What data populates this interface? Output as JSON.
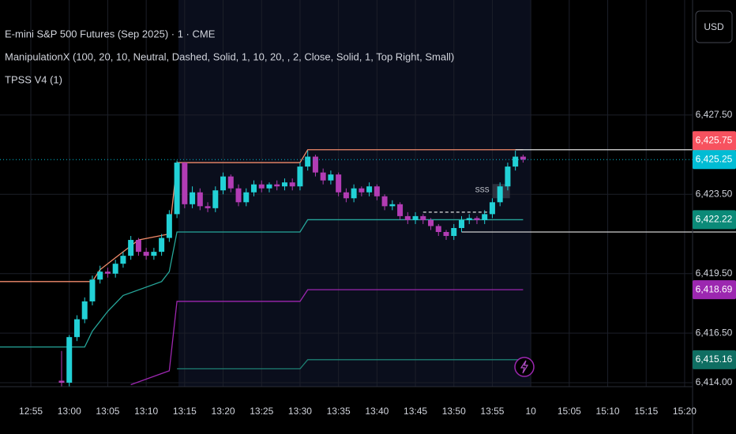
{
  "header": {
    "title": "E-mini S&P 500 Futures (Sep 2025) · 1 · CME",
    "indicators": [
      "ManipulationX (100, 20, 10, Neutral, Dashed, Solid, 1, 10, 20, , 2, Close, Solid, 1, Top Right, Small)",
      "TPSS V4 (1)"
    ],
    "currency": "USD"
  },
  "chart_data": {
    "type": "candlestick",
    "categories": [
      "12:59",
      "13:00",
      "13:01",
      "13:02",
      "13:03",
      "13:04",
      "13:05",
      "13:06",
      "13:07",
      "13:08",
      "13:09",
      "13:10",
      "13:11",
      "13:12",
      "13:13",
      "13:14",
      "13:15",
      "13:16",
      "13:17",
      "13:18",
      "13:19",
      "13:20",
      "13:21",
      "13:22",
      "13:23",
      "13:24",
      "13:25",
      "13:26",
      "13:27",
      "13:28",
      "13:29",
      "13:30",
      "13:31",
      "13:32",
      "13:33",
      "13:34",
      "13:35",
      "13:36",
      "13:37",
      "13:38",
      "13:39",
      "13:40",
      "13:41",
      "13:42",
      "13:43",
      "13:44",
      "13:45",
      "13:46",
      "13:47",
      "13:48",
      "13:49",
      "13:50",
      "13:51",
      "13:52",
      "13:53",
      "13:54",
      "13:55",
      "13:56",
      "13:57",
      "13:58",
      "13:59"
    ],
    "open": [
      6414.1,
      6414.0,
      6416.3,
      6417.2,
      6418.1,
      6419.2,
      6419.6,
      6419.5,
      6420.0,
      6420.4,
      6421.2,
      6420.6,
      6420.4,
      6420.6,
      6421.3,
      6422.5,
      6425.1,
      6423.0,
      6423.6,
      6422.9,
      6422.8,
      6423.7,
      6424.4,
      6423.8,
      6423.1,
      6423.6,
      6424.0,
      6423.8,
      6424.0,
      6423.9,
      6424.1,
      6423.9,
      6424.9,
      6425.4,
      6424.6,
      6424.2,
      6424.5,
      6423.6,
      6423.3,
      6423.8,
      6423.6,
      6423.9,
      6423.4,
      6422.9,
      6423.0,
      6422.4,
      6422.2,
      6422.4,
      6422.2,
      6421.9,
      6421.6,
      6421.4,
      6421.8,
      6422.2,
      6422.3,
      6422.2,
      6422.5,
      6423.1,
      6423.9,
      6424.9,
      6425.4
    ],
    "high": [
      6415.6,
      6416.4,
      6417.4,
      6418.3,
      6419.4,
      6419.9,
      6419.8,
      6420.2,
      6420.6,
      6421.4,
      6421.3,
      6420.8,
      6420.8,
      6421.5,
      6422.7,
      6425.2,
      6425.1,
      6423.9,
      6423.8,
      6423.1,
      6423.9,
      6424.6,
      6424.5,
      6424.0,
      6423.8,
      6424.2,
      6424.2,
      6424.1,
      6424.2,
      6424.3,
      6424.3,
      6425.1,
      6425.7,
      6425.5,
      6424.8,
      6424.7,
      6424.6,
      6423.8,
      6424.0,
      6423.9,
      6424.1,
      6424.0,
      6423.5,
      6423.2,
      6423.1,
      6422.6,
      6422.6,
      6422.5,
      6422.3,
      6422.0,
      6421.7,
      6422.0,
      6422.4,
      6422.5,
      6422.4,
      6422.7,
      6423.3,
      6424.1,
      6425.1,
      6425.7,
      6425.5
    ],
    "low": [
      6413.8,
      6413.8,
      6416.1,
      6417.0,
      6417.9,
      6419.0,
      6419.3,
      6419.3,
      6419.8,
      6420.2,
      6420.4,
      6420.2,
      6420.2,
      6420.4,
      6421.1,
      6422.3,
      6422.8,
      6422.8,
      6422.7,
      6422.6,
      6422.6,
      6423.5,
      6423.6,
      6422.9,
      6422.9,
      6423.4,
      6423.6,
      6423.6,
      6423.7,
      6423.7,
      6423.7,
      6423.7,
      6424.7,
      6424.4,
      6424.0,
      6424.0,
      6423.4,
      6423.1,
      6423.1,
      6423.4,
      6423.4,
      6423.2,
      6422.7,
      6422.7,
      6422.2,
      6422.0,
      6422.0,
      6422.0,
      6421.7,
      6421.4,
      6421.2,
      6421.2,
      6421.6,
      6422.0,
      6422.0,
      6422.0,
      6422.3,
      6422.9,
      6423.7,
      6424.7,
      6425.1
    ],
    "close": [
      6414.0,
      6416.3,
      6417.2,
      6418.1,
      6419.2,
      6419.6,
      6419.5,
      6420.0,
      6420.4,
      6421.2,
      6420.6,
      6420.4,
      6420.6,
      6421.3,
      6422.5,
      6425.1,
      6423.0,
      6423.6,
      6422.9,
      6422.8,
      6423.7,
      6424.4,
      6423.8,
      6423.1,
      6423.6,
      6424.0,
      6423.8,
      6424.0,
      6423.9,
      6424.1,
      6423.9,
      6424.9,
      6425.4,
      6424.6,
      6424.2,
      6424.5,
      6423.6,
      6423.3,
      6423.8,
      6423.6,
      6423.9,
      6423.4,
      6422.9,
      6423.0,
      6422.4,
      6422.2,
      6422.4,
      6422.2,
      6421.9,
      6421.6,
      6421.4,
      6421.8,
      6422.2,
      6422.3,
      6422.2,
      6422.5,
      6423.1,
      6423.9,
      6424.9,
      6425.4,
      6425.25
    ],
    "up_color": "#22d1d6",
    "down_color": "#b23cb4",
    "lines": [
      {
        "color": "#f28b6b",
        "extend": "left",
        "x": [
          "12:59",
          "13:03",
          "13:04",
          "13:06",
          "13:09",
          "13:13",
          "13:14",
          "13:30",
          "13:31",
          "13:59"
        ],
        "values": [
          6419.1,
          6419.1,
          6419.7,
          6420.3,
          6421.2,
          6421.5,
          6425.1,
          6425.1,
          6425.75,
          6425.75
        ]
      },
      {
        "color": "#26a69a",
        "extend": "left",
        "x": [
          "12:59",
          "13:02",
          "13:03",
          "13:05",
          "13:07",
          "13:12",
          "13:13",
          "13:14",
          "13:30",
          "13:31",
          "13:59"
        ],
        "values": [
          6415.8,
          6415.8,
          6416.6,
          6417.6,
          6418.4,
          6419.1,
          6419.6,
          6421.6,
          6421.6,
          6422.22,
          6422.22
        ]
      },
      {
        "color": "#9c27b0",
        "x": [
          "13:08",
          "13:13",
          "13:14",
          "13:30",
          "13:31",
          "13:59"
        ],
        "values": [
          6413.9,
          6414.6,
          6418.1,
          6418.1,
          6418.69,
          6418.69
        ]
      },
      {
        "color": "#1d7f72",
        "x": [
          "13:14",
          "13:30",
          "13:31",
          "13:59"
        ],
        "values": [
          6414.7,
          6414.7,
          6415.16,
          6415.16
        ]
      },
      {
        "color": "#e0e0e0",
        "extend": "right",
        "x": [
          "13:58",
          "13:59"
        ],
        "values": [
          6425.75,
          6425.75
        ]
      },
      {
        "color": "#cfcfcf",
        "extend": "right",
        "x": [
          "13:51",
          "13:59"
        ],
        "values": [
          6421.6,
          6421.6
        ]
      },
      {
        "color": "#e0e0e0",
        "dash": true,
        "x": [
          "13:46",
          "13:55"
        ],
        "values": [
          6422.6,
          6422.6
        ]
      }
    ],
    "annotation": {
      "text": "SSS",
      "x": "13:54",
      "y": 6423.7
    },
    "ylim": [
      6413.8,
      6433.3
    ],
    "yticks": [
      {
        "value": 6427.5,
        "label": "6,427.50"
      },
      {
        "value": 6423.5,
        "label": "6,423.50"
      },
      {
        "value": 6419.5,
        "label": "6,419.50"
      },
      {
        "value": 6416.5,
        "label": "6,416.50"
      },
      {
        "value": 6414.0,
        "label": "6,414.00"
      }
    ],
    "xticks": [
      "12:55",
      "13:00",
      "13:05",
      "13:10",
      "13:15",
      "13:20",
      "13:25",
      "13:30",
      "13:35",
      "13:40",
      "13:45",
      "13:50",
      "13:55",
      "10",
      "15:05",
      "15:10",
      "15:15",
      "15:20"
    ],
    "price_labels": [
      {
        "value": 6425.75,
        "label": "6,425.75",
        "color": "#f7525f"
      },
      {
        "value": 6425.25,
        "label": "6,425.25",
        "color": "#00bcd4",
        "dotted_line": true
      },
      {
        "value": 6422.22,
        "label": "6,422.22",
        "color": "#0b8a78"
      },
      {
        "value": 6418.69,
        "label": "6,418.69",
        "color": "#9c27b0"
      },
      {
        "value": 6415.16,
        "label": "6,415.16",
        "color": "#0f6e62"
      }
    ],
    "grid": true
  }
}
